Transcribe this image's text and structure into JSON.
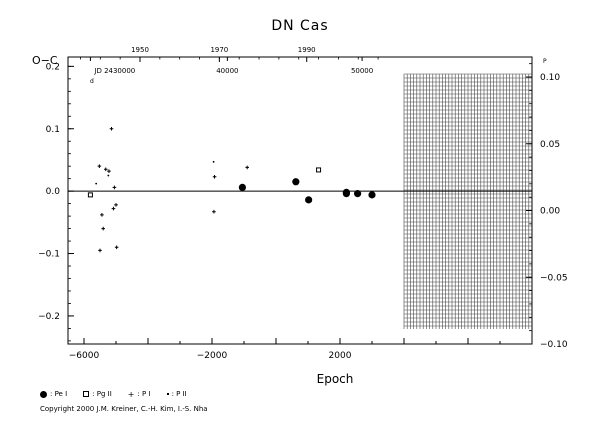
{
  "chart_data": {
    "type": "scatter",
    "title": "DN Cas",
    "ylabel": "O−C",
    "xlabel": "Epoch",
    "xlim": [
      -6500,
      8000
    ],
    "ylim": [
      -0.245,
      0.215
    ],
    "right_ylim": [
      -0.1,
      0.115
    ],
    "x_ticks": [
      -6000,
      -2000,
      2000
    ],
    "y_ticks_left": [
      0.2,
      0.1,
      0.0,
      -0.1,
      -0.2
    ],
    "y_tick_labels_left": [
      "0.2",
      "0.1",
      "0.0",
      "−0.1",
      "−0.2"
    ],
    "y_ticks_right": [
      0.1,
      0.05,
      0.0,
      -0.05,
      -0.1
    ],
    "y_tick_labels_right": [
      "0.10",
      "0.05",
      "0.00",
      "−0.05",
      "−0.10"
    ],
    "left_top_unit": "d",
    "right_top_unit": "P",
    "year_ticks": [
      {
        "label": "1950",
        "epoch": -4250
      },
      {
        "label": "1970",
        "epoch": -1770
      },
      {
        "label": "1990",
        "epoch": 960
      }
    ],
    "jd_ticks": [
      {
        "label": "JD 2430000",
        "epoch": -5800
      },
      {
        "label": "40000",
        "epoch": -1520
      },
      {
        "label": "50000",
        "epoch": 2690
      }
    ],
    "hatched_region": [
      4000,
      8000
    ],
    "grid": false,
    "series": [
      {
        "name": "Pe I",
        "marker": "filled-circle",
        "points": [
          [
            -1050,
            0.006
          ],
          [
            620,
            0.015
          ],
          [
            1020,
            -0.014
          ],
          [
            2200,
            -0.002
          ],
          [
            2200,
            -0.004
          ],
          [
            2550,
            -0.004
          ],
          [
            3000,
            -0.006
          ]
        ]
      },
      {
        "name": "Pg II",
        "marker": "open-square",
        "points": [
          [
            -5800,
            -0.006
          ],
          [
            1330,
            0.034
          ]
        ]
      },
      {
        "name": "P I",
        "marker": "plus",
        "points": [
          [
            -5520,
            0.04
          ],
          [
            -5320,
            0.035
          ],
          [
            -5220,
            0.032
          ],
          [
            -5140,
            0.1
          ],
          [
            -5050,
            0.006
          ],
          [
            -5000,
            -0.022
          ],
          [
            -5080,
            -0.028
          ],
          [
            -5440,
            -0.038
          ],
          [
            -5400,
            -0.06
          ],
          [
            -5500,
            -0.095
          ],
          [
            -4980,
            -0.09
          ],
          [
            -1920,
            0.023
          ],
          [
            -1940,
            -0.033
          ],
          [
            -900,
            0.038
          ]
        ]
      },
      {
        "name": "P II",
        "marker": "dot",
        "points": [
          [
            -5620,
            0.012
          ],
          [
            -5240,
            0.025
          ],
          [
            -1950,
            0.047
          ]
        ]
      }
    ]
  },
  "legend": [
    {
      "symbol": "filled-circle",
      "label": ": Pe I"
    },
    {
      "symbol": "open-square",
      "label": ": Pg II"
    },
    {
      "symbol": "plus",
      "label": ": P I"
    },
    {
      "symbol": "dot",
      "label": ": P II"
    }
  ],
  "copyright": "Copyright 2000 J.M. Kreiner, C.-H. Kim, I.-S. Nha"
}
